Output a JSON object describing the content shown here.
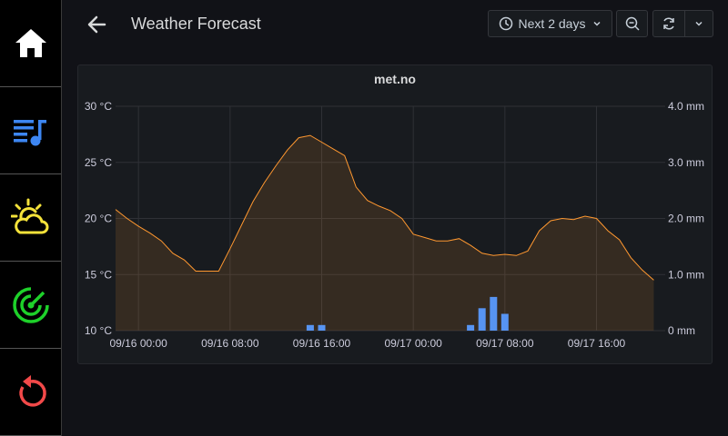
{
  "header": {
    "title": "Weather Forecast",
    "time_range": "Next 2 days"
  },
  "sidebar": {
    "items": [
      {
        "icon": "home-icon",
        "color": "#ffffff"
      },
      {
        "icon": "playlist-icon",
        "color": "#3d86f2"
      },
      {
        "icon": "weather-partly-cloudy-icon",
        "color": "#f4e23a"
      },
      {
        "icon": "radar-icon",
        "color": "#1ed12a"
      },
      {
        "icon": "restart-icon",
        "color": "#f24949"
      }
    ]
  },
  "panel": {
    "title": "met.no"
  },
  "chart_data": {
    "type": "line",
    "title": "met.no",
    "x_ticks": [
      "09/16 00:00",
      "09/16 08:00",
      "09/16 16:00",
      "09/17 00:00",
      "09/17 08:00",
      "09/17 16:00"
    ],
    "y_left": {
      "range": [
        10,
        30
      ],
      "ticks": [
        "10 °C",
        "15 °C",
        "20 °C",
        "25 °C",
        "30 °C"
      ]
    },
    "y_right": {
      "range": [
        0,
        4
      ],
      "ticks": [
        "0 mm",
        "1.0 mm",
        "2.0 mm",
        "3.0 mm",
        "4.0 mm"
      ]
    },
    "grid": true,
    "series": [
      {
        "type": "area-line",
        "axis": "left",
        "color": "#ff9830",
        "x": [
          "09/15 22:00",
          "09/15 23:00",
          "09/16 00:00",
          "09/16 01:00",
          "09/16 02:00",
          "09/16 03:00",
          "09/16 04:00",
          "09/16 05:00",
          "09/16 06:00",
          "09/16 07:00",
          "09/16 08:00",
          "09/16 09:00",
          "09/16 10:00",
          "09/16 11:00",
          "09/16 12:00",
          "09/16 13:00",
          "09/16 14:00",
          "09/16 15:00",
          "09/16 16:00",
          "09/16 17:00",
          "09/16 18:00",
          "09/16 19:00",
          "09/16 20:00",
          "09/16 21:00",
          "09/16 22:00",
          "09/16 23:00",
          "09/17 00:00",
          "09/17 01:00",
          "09/17 02:00",
          "09/17 03:00",
          "09/17 04:00",
          "09/17 05:00",
          "09/17 06:00",
          "09/17 07:00",
          "09/17 08:00",
          "09/17 09:00",
          "09/17 10:00",
          "09/17 11:00",
          "09/17 12:00",
          "09/17 13:00",
          "09/17 14:00",
          "09/17 15:00",
          "09/17 16:00",
          "09/17 17:00",
          "09/17 18:00",
          "09/17 19:00",
          "09/17 20:00",
          "09/17 21:00"
        ],
        "values": [
          20.8,
          20.0,
          19.3,
          18.7,
          18.0,
          16.9,
          16.3,
          15.3,
          15.3,
          15.3,
          17.3,
          19.4,
          21.5,
          23.2,
          24.7,
          26.1,
          27.2,
          27.4,
          26.8,
          26.2,
          25.6,
          22.8,
          21.6,
          21.1,
          20.7,
          20.0,
          18.6,
          18.3,
          18.0,
          18.0,
          18.2,
          17.6,
          16.9,
          16.7,
          16.8,
          16.7,
          17.1,
          18.9,
          19.8,
          20.0,
          19.9,
          20.2,
          20.0,
          18.9,
          18.1,
          16.5,
          15.4,
          14.5
        ]
      },
      {
        "type": "bar",
        "axis": "right",
        "color": "#5794f2",
        "x": [
          "09/16 15:00",
          "09/16 16:00",
          "09/17 05:00",
          "09/17 06:00",
          "09/17 07:00",
          "09/17 08:00"
        ],
        "values": [
          0.1,
          0.1,
          0.1,
          0.4,
          0.6,
          0.3
        ]
      }
    ]
  }
}
